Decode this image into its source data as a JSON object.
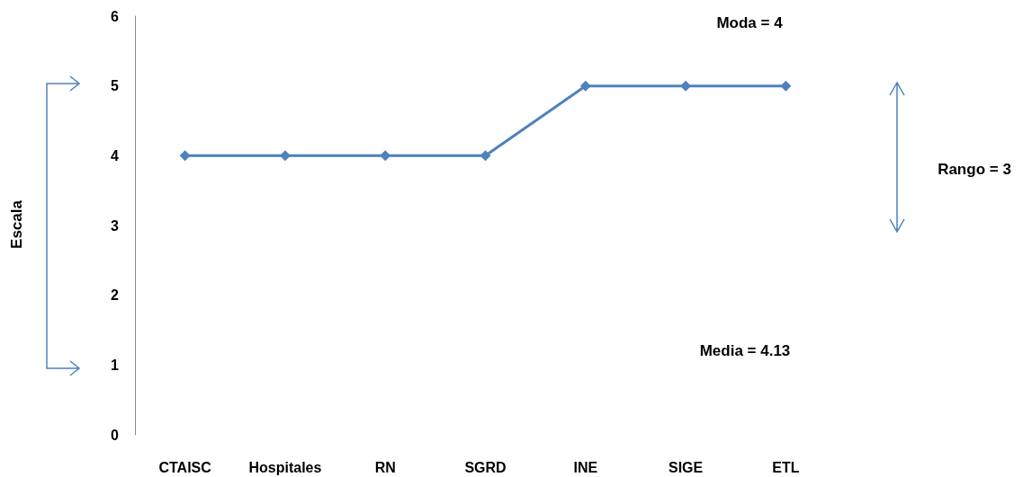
{
  "chart_data": {
    "type": "line",
    "categories": [
      "CTAISC",
      "Hospitales",
      "RN",
      "SGRD",
      "INE",
      "SIGE",
      "ETL"
    ],
    "series": [
      {
        "color": "#4f81bd",
        "values": [
          4,
          4,
          4,
          4,
          5,
          5,
          5
        ]
      }
    ],
    "ylim": [
      0,
      6
    ],
    "yticks": [
      0,
      1,
      2,
      3,
      4,
      5,
      6
    ],
    "grid": false,
    "marker": "diamond",
    "line_style": "solid",
    "annotations": [
      "Moda = 4",
      "Rango = 3",
      "Media = 4.13",
      "Escala"
    ]
  }
}
